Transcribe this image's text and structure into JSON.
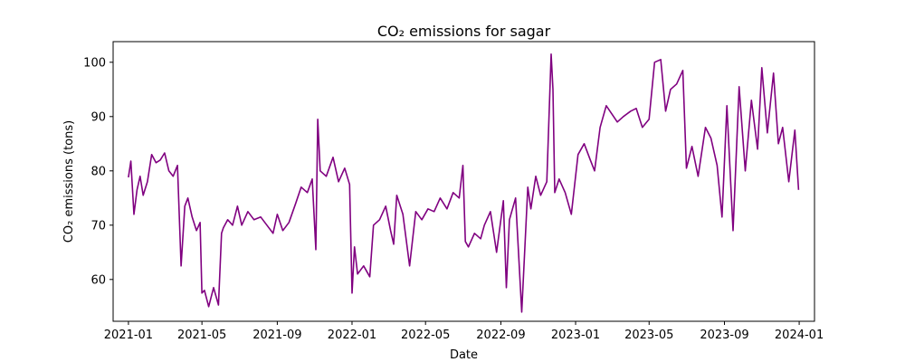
{
  "chart_data": {
    "type": "line",
    "title": "CO₂ emissions for sagar",
    "xlabel": "Date",
    "ylabel": "CO₂ emissions (tons)",
    "xlim": [
      "2020-12-07",
      "2024-01-26"
    ],
    "ylim": [
      52.3,
      103.8
    ],
    "x_ticks": [
      "2021-01",
      "2021-05",
      "2021-09",
      "2022-01",
      "2022-05",
      "2022-09",
      "2023-01",
      "2023-05",
      "2023-09",
      "2024-01"
    ],
    "y_ticks": [
      60,
      70,
      80,
      90,
      100
    ],
    "grid": false,
    "legend": "none",
    "series": [
      {
        "color": "#800080",
        "x": [
          "2021-01-01",
          "2021-01-05",
          "2021-01-10",
          "2021-01-15",
          "2021-01-20",
          "2021-01-25",
          "2021-02-01",
          "2021-02-08",
          "2021-02-15",
          "2021-02-22",
          "2021-03-01",
          "2021-03-08",
          "2021-03-15",
          "2021-03-22",
          "2021-03-28",
          "2021-04-03",
          "2021-04-08",
          "2021-04-15",
          "2021-04-22",
          "2021-04-28",
          "2021-05-01",
          "2021-05-05",
          "2021-05-12",
          "2021-05-20",
          "2021-05-28",
          "2021-06-02",
          "2021-06-05",
          "2021-06-12",
          "2021-06-20",
          "2021-06-28",
          "2021-07-05",
          "2021-07-15",
          "2021-07-25",
          "2021-08-05",
          "2021-08-15",
          "2021-08-25",
          "2021-09-01",
          "2021-09-10",
          "2021-09-20",
          "2021-10-01",
          "2021-10-10",
          "2021-10-20",
          "2021-10-28",
          "2021-11-03",
          "2021-11-06",
          "2021-11-10",
          "2021-11-20",
          "2021-12-01",
          "2021-12-10",
          "2021-12-20",
          "2021-12-28",
          "2022-01-01",
          "2022-01-05",
          "2022-01-10",
          "2022-01-20",
          "2022-01-30",
          "2022-02-05",
          "2022-02-15",
          "2022-02-25",
          "2022-03-05",
          "2022-03-10",
          "2022-03-15",
          "2022-03-25",
          "2022-04-05",
          "2022-04-15",
          "2022-04-25",
          "2022-05-05",
          "2022-05-15",
          "2022-05-25",
          "2022-06-05",
          "2022-06-15",
          "2022-06-25",
          "2022-07-01",
          "2022-07-05",
          "2022-07-10",
          "2022-07-20",
          "2022-07-30",
          "2022-08-05",
          "2022-08-15",
          "2022-08-25",
          "2022-09-05",
          "2022-09-10",
          "2022-09-15",
          "2022-09-25",
          "2022-10-05",
          "2022-10-15",
          "2022-10-20",
          "2022-10-28",
          "2022-11-05",
          "2022-11-15",
          "2022-11-22",
          "2022-11-25",
          "2022-11-28",
          "2022-12-05",
          "2022-12-15",
          "2022-12-25",
          "2023-01-05",
          "2023-01-15",
          "2023-01-25",
          "2023-02-01",
          "2023-02-10",
          "2023-02-20",
          "2023-03-01",
          "2023-03-10",
          "2023-03-20",
          "2023-04-01",
          "2023-04-10",
          "2023-04-20",
          "2023-05-01",
          "2023-05-10",
          "2023-05-20",
          "2023-05-28",
          "2023-06-05",
          "2023-06-15",
          "2023-06-25",
          "2023-07-01",
          "2023-07-10",
          "2023-07-20",
          "2023-08-01",
          "2023-08-10",
          "2023-08-20",
          "2023-08-28",
          "2023-09-05",
          "2023-09-15",
          "2023-09-25",
          "2023-10-05",
          "2023-10-15",
          "2023-10-25",
          "2023-11-01",
          "2023-11-10",
          "2023-11-20",
          "2023-11-28",
          "2023-12-05",
          "2023-12-15",
          "2023-12-25",
          "2023-12-31"
        ],
        "y": [
          78.8,
          81.8,
          72.0,
          76.5,
          79.0,
          75.5,
          78.0,
          83.0,
          81.5,
          82.0,
          83.3,
          80.0,
          79.0,
          81.0,
          62.5,
          73.5,
          75.0,
          71.5,
          69.0,
          70.5,
          57.5,
          58.0,
          55.0,
          58.5,
          55.3,
          68.5,
          69.5,
          71.0,
          70.0,
          73.5,
          70.0,
          72.5,
          71.0,
          71.5,
          70.0,
          68.5,
          72.0,
          69.0,
          70.5,
          74.0,
          77.0,
          76.0,
          78.5,
          65.5,
          89.5,
          80.0,
          79.0,
          82.5,
          78.0,
          80.5,
          77.5,
          57.5,
          66.0,
          61.0,
          62.5,
          60.5,
          70.0,
          71.0,
          73.5,
          69.0,
          66.5,
          75.5,
          72.0,
          62.5,
          72.5,
          71.0,
          73.0,
          72.5,
          75.0,
          73.0,
          76.0,
          75.0,
          81.0,
          67.0,
          66.0,
          68.5,
          67.5,
          70.0,
          72.5,
          65.0,
          74.5,
          58.5,
          71.0,
          75.0,
          54.0,
          77.0,
          73.0,
          79.0,
          75.5,
          78.0,
          101.5,
          95.0,
          76.0,
          78.5,
          76.0,
          72.0,
          83.0,
          85.0,
          82.0,
          80.0,
          88.0,
          92.0,
          90.5,
          89.0,
          90.0,
          91.0,
          91.5,
          88.0,
          89.5,
          100.0,
          100.5,
          91.0,
          95.0,
          96.0,
          98.5,
          80.5,
          84.5,
          79.0,
          88.0,
          86.0,
          81.0,
          71.5,
          92.0,
          69.0,
          95.5,
          80.0,
          93.0,
          84.0,
          99.0,
          87.0,
          98.0,
          85.0,
          88.0,
          78.0,
          87.5,
          76.5
        ]
      }
    ]
  }
}
